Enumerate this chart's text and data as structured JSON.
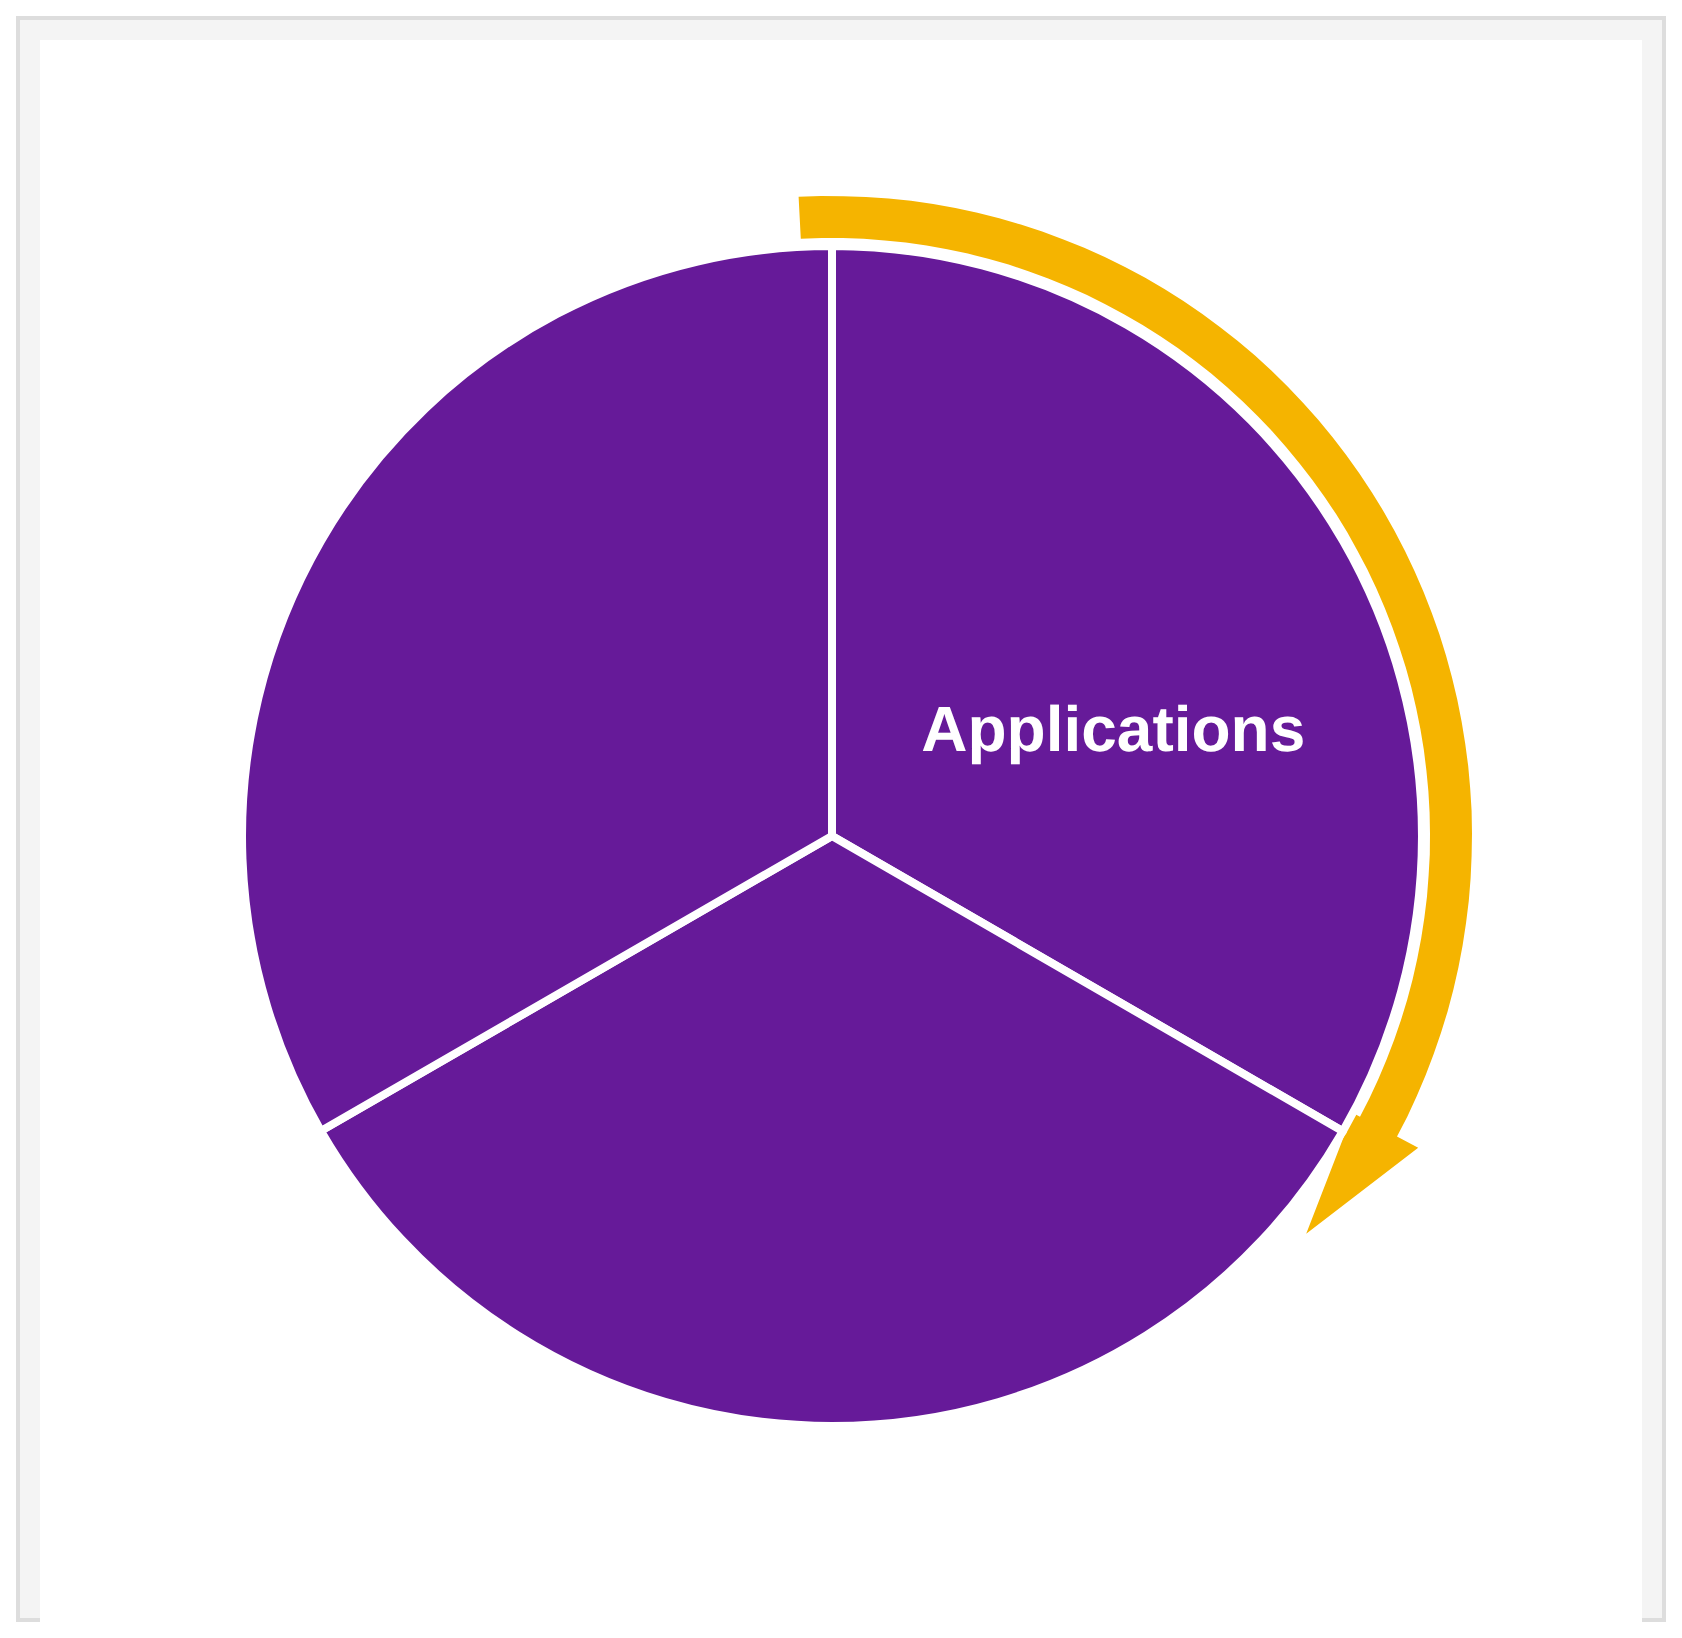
{
  "chart_data": {
    "type": "pie",
    "categories": [
      "Applications",
      null,
      null
    ],
    "values": [
      33.34,
      33.33,
      33.33
    ],
    "colors": [
      "#661a99",
      "#661a99",
      "#661a99"
    ]
  }
}
